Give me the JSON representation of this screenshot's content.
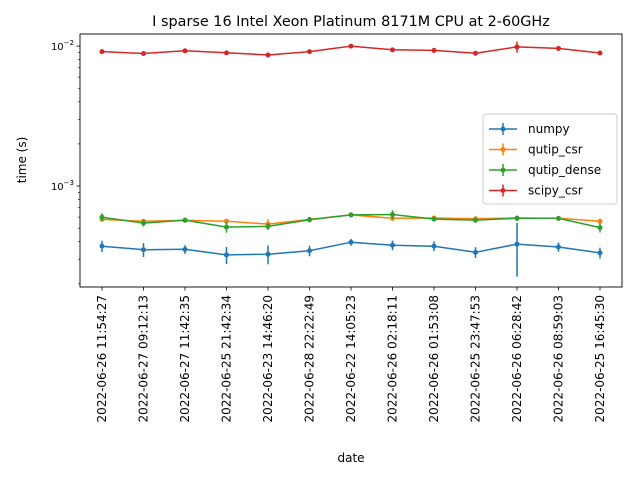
{
  "chart_data": {
    "type": "line",
    "title": "I sparse 16 Intel Xeon Platinum 8171M CPU at 2-60GHz",
    "xlabel": "date",
    "ylabel": "time (s)",
    "yscale": "log",
    "ylim": [
      0.00019,
      0.0122
    ],
    "y_ticks": [
      {
        "value": 0.001,
        "base": "10",
        "exp": "−3"
      },
      {
        "value": 0.01,
        "base": "10",
        "exp": "−2"
      }
    ],
    "categories": [
      "2022-06-26 11:54:27",
      "2022-06-27 09:12:13",
      "2022-06-27 11:42:35",
      "2022-06-25 21:42:34",
      "2022-06-23 14:46:20",
      "2022-06-28 22:22:49",
      "2022-06-22 14:05:23",
      "2022-06-26 02:18:11",
      "2022-06-26 01:53:08",
      "2022-06-25 23:47:53",
      "2022-06-26 06:28:42",
      "2022-06-26 08:59:03",
      "2022-06-25 16:45:30"
    ],
    "legend_position": "center-right",
    "grid": false,
    "series": [
      {
        "name": "numpy",
        "color": "#1f77b4",
        "values": [
          0.000372,
          0.000351,
          0.000353,
          0.000322,
          0.000326,
          0.000345,
          0.000397,
          0.000378,
          0.000372,
          0.000336,
          0.000385,
          0.000367,
          0.000333
        ],
        "err": [
          3.5e-05,
          4e-05,
          2.5e-05,
          4.5e-05,
          5e-05,
          3e-05,
          2.2e-05,
          3e-05,
          3e-05,
          3e-05,
          0.00016,
          2.8e-05,
          3e-05
        ]
      },
      {
        "name": "qutip_csr",
        "color": "#ff7f0e",
        "values": [
          0.000578,
          0.000561,
          0.000568,
          0.000561,
          0.000535,
          0.000578,
          0.000622,
          0.000588,
          0.000591,
          0.000584,
          0.000591,
          0.000588,
          0.000561
        ],
        "err": [
          2e-05,
          2e-05,
          1.5e-05,
          2e-05,
          4.5e-05,
          2e-05,
          2e-05,
          2e-05,
          2e-05,
          2e-05,
          2.5e-05,
          1.5e-05,
          1.5e-05
        ]
      },
      {
        "name": "qutip_dense",
        "color": "#2ca02c",
        "values": [
          0.000599,
          0.000544,
          0.000571,
          0.000509,
          0.000515,
          0.000575,
          0.000622,
          0.000626,
          0.000581,
          0.000571,
          0.000588,
          0.000588,
          0.000505
        ],
        "err": [
          4e-05,
          3e-05,
          2e-05,
          4.5e-05,
          3e-05,
          2.5e-05,
          2e-05,
          4.5e-05,
          2e-05,
          2.5e-05,
          2.5e-05,
          2e-05,
          4e-05
        ]
      },
      {
        "name": "scipy_csr",
        "color": "#d62728",
        "values": [
          0.00913,
          0.00885,
          0.00925,
          0.00895,
          0.00863,
          0.00913,
          0.01,
          0.0094,
          0.00931,
          0.00888,
          0.00986,
          0.00962,
          0.00892
        ],
        "err": [
          0.0002,
          0.00015,
          0.0002,
          0.00015,
          0.00015,
          0.0002,
          0.00025,
          0.0002,
          0.0002,
          0.0002,
          0.0009,
          0.0002,
          0.00025
        ]
      }
    ]
  }
}
